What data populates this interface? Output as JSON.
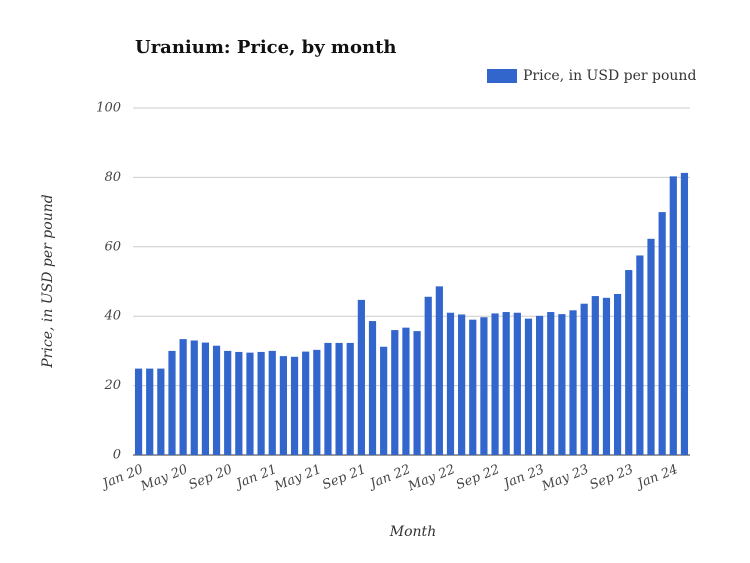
{
  "chart_data": {
    "type": "bar",
    "title": "Uranium: Price, by month",
    "x_label": "Month",
    "y_label": "Price, in USD per pound",
    "categories": [
      "Jan 20",
      null,
      null,
      null,
      "May 20",
      null,
      null,
      null,
      "Sep 20",
      null,
      null,
      null,
      "Jan 21",
      null,
      null,
      null,
      "May 21",
      null,
      null,
      null,
      "Sep 21",
      null,
      null,
      null,
      "Jan 22",
      null,
      null,
      null,
      "May 22",
      null,
      null,
      null,
      "Sep 22",
      null,
      null,
      null,
      "Jan 23",
      null,
      null,
      null,
      "May 23",
      null,
      null,
      null,
      "Sep 23",
      null,
      null,
      null,
      "Jan 24",
      null
    ],
    "series": [
      {
        "name": "Price, in USD per pound",
        "color": "#3366cc",
        "values": [
          24.9,
          24.9,
          24.9,
          30.0,
          33.4,
          33.0,
          32.4,
          31.5,
          30.0,
          29.7,
          29.5,
          29.7,
          30.0,
          28.5,
          28.3,
          29.8,
          30.3,
          32.3,
          32.3,
          32.3,
          44.7,
          38.6,
          31.2,
          36.0,
          36.7,
          35.7,
          45.6,
          48.6,
          41.0,
          40.5,
          39.0,
          39.7,
          40.8,
          41.2,
          41.0,
          39.3,
          40.1,
          41.2,
          40.6,
          41.7,
          43.6,
          45.8,
          45.3,
          46.4,
          53.3,
          57.5,
          62.3,
          70.0,
          80.3,
          81.3
        ]
      }
    ],
    "ylim": [
      0,
      100
    ],
    "yticks": [
      0,
      20,
      40,
      60,
      80,
      100
    ],
    "grid": true,
    "legend": "top-right"
  }
}
